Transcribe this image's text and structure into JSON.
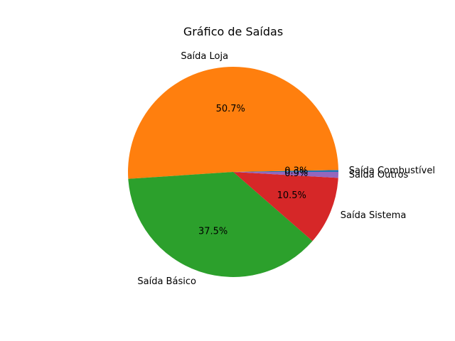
{
  "chart_data": {
    "type": "pie",
    "title": "Gráfico de Saídas",
    "slices": [
      {
        "label": "Saída Combustível",
        "value": 0.3,
        "pct_label": "0.3%",
        "color": "#1f77b4"
      },
      {
        "label": "Saída Loja",
        "value": 50.7,
        "pct_label": "50.7%",
        "color": "#ff7f0e"
      },
      {
        "label": "Saída Básico",
        "value": 37.5,
        "pct_label": "37.5%",
        "color": "#2ca02c"
      },
      {
        "label": "Saída Sistema",
        "value": 10.5,
        "pct_label": "10.5%",
        "color": "#d62728"
      },
      {
        "label": "Saída Outros",
        "value": 0.9,
        "pct_label": "0.9%",
        "color": "#9467bd"
      }
    ],
    "start_angle_deg": 0,
    "direction": "counterclockwise"
  }
}
